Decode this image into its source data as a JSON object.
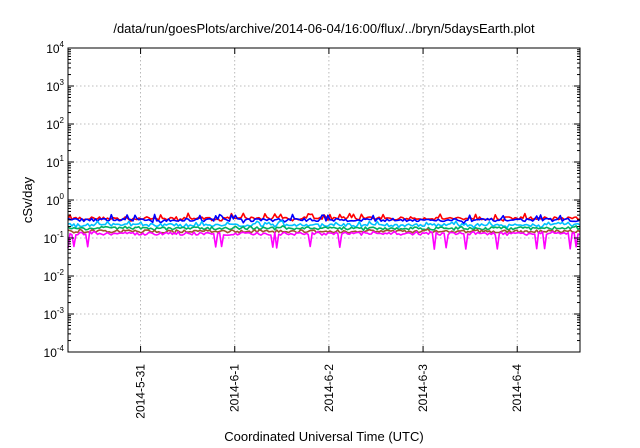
{
  "chart_data": {
    "type": "line",
    "title": "/data/run/goesPlots/archive/2014-06-04/16:00/flux/../bryn/5daysEarth.plot",
    "xlabel": "Coordinated Universal Time (UTC)",
    "ylabel": "cSv/day",
    "yscale": "log",
    "ylim": [
      0.0001,
      10000
    ],
    "xlim": [
      "2014-05-30 05:30",
      "2014-06-04 16:00"
    ],
    "grid": true,
    "y_ticks": [
      {
        "base": "10",
        "exp": "-4",
        "value": 0.0001
      },
      {
        "base": "10",
        "exp": "-3",
        "value": 0.001
      },
      {
        "base": "10",
        "exp": "-2",
        "value": 0.01
      },
      {
        "base": "10",
        "exp": "-1",
        "value": 0.1
      },
      {
        "base": "10",
        "exp": "0",
        "value": 1
      },
      {
        "base": "10",
        "exp": "1",
        "value": 10
      },
      {
        "base": "10",
        "exp": "2",
        "value": 100
      },
      {
        "base": "10",
        "exp": "3",
        "value": 1000
      },
      {
        "base": "10",
        "exp": "4",
        "value": 10000
      }
    ],
    "x_ticks": [
      {
        "label": "2014-5-31",
        "value": "2014-05-31 00:00"
      },
      {
        "label": "2014-6-1",
        "value": "2014-06-01 00:00"
      },
      {
        "label": "2014-6-2",
        "value": "2014-06-02 00:00"
      },
      {
        "label": "2014-6-3",
        "value": "2014-06-03 00:00"
      },
      {
        "label": "2014-6-4",
        "value": "2014-06-04 00:00"
      }
    ],
    "series": [
      {
        "color": "#ff0000",
        "typical": 0.33,
        "low": 0.27,
        "high": 0.45
      },
      {
        "color": "#0000ff",
        "typical": 0.3,
        "low": 0.24,
        "high": 0.42
      },
      {
        "color": "#00c0ff",
        "typical": 0.22,
        "low": 0.18,
        "high": 0.28
      },
      {
        "color": "#00b060",
        "typical": 0.18,
        "low": 0.15,
        "high": 0.21
      },
      {
        "color": "#a0522d",
        "typical": 0.15,
        "low": 0.13,
        "high": 0.17
      },
      {
        "color": "#ff00ff",
        "typical": 0.13,
        "low": 0.05,
        "high": 0.15
      }
    ]
  }
}
